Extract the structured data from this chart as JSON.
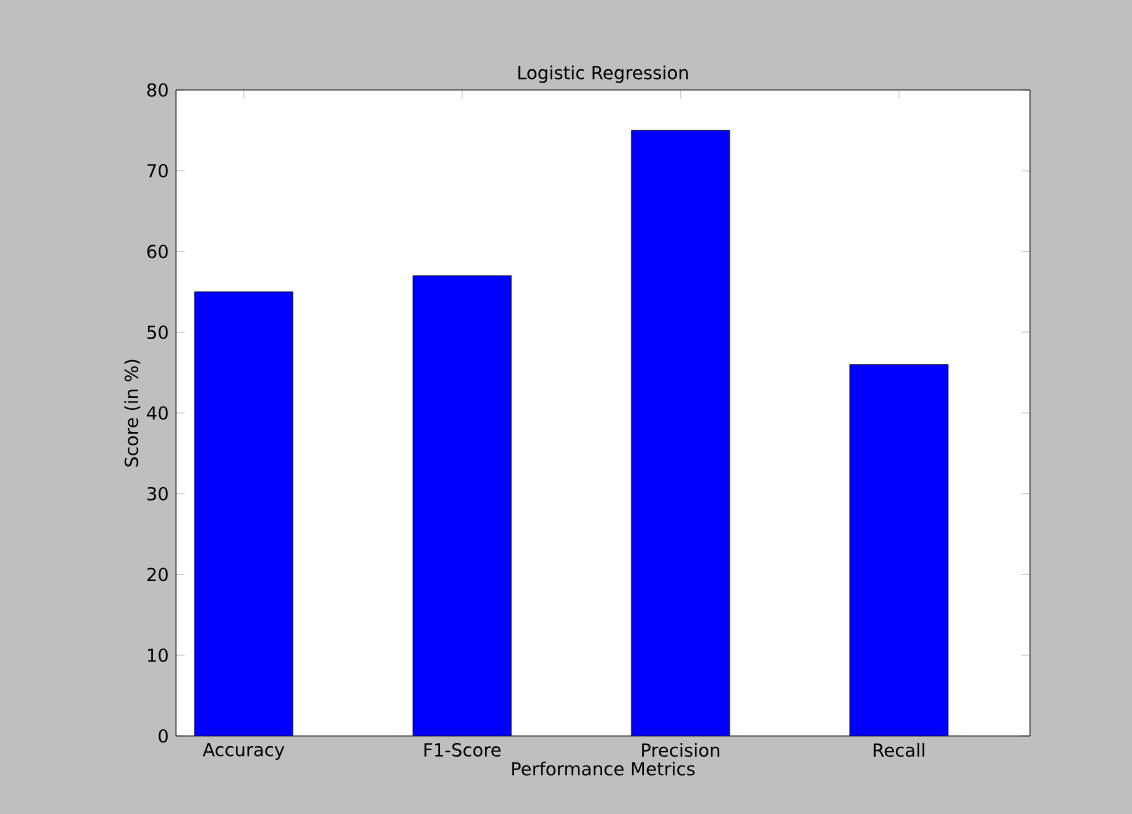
{
  "chart_data": {
    "type": "bar",
    "title": "Logistic Regression",
    "xlabel": "Performance Metrics",
    "ylabel": "Score (in %)",
    "categories": [
      "Accuracy",
      "F1-Score",
      "Precision",
      "Recall"
    ],
    "values": [
      55,
      57,
      75,
      46
    ],
    "color": "#0000ff",
    "ylim": [
      0,
      80
    ],
    "yticks": [
      0,
      10,
      20,
      30,
      40,
      50,
      60,
      70,
      80
    ],
    "grid": false
  }
}
